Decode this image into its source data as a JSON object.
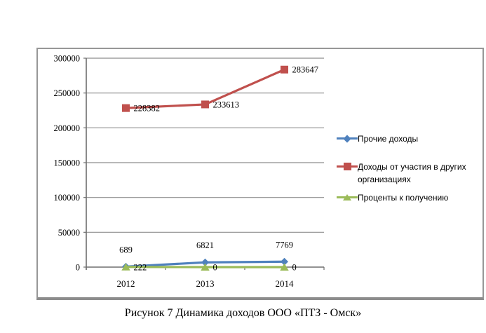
{
  "chart_data": {
    "type": "line",
    "title": "Рисунок 7 Динамика доходов ООО «ПТЗ - Омск»",
    "xlabel": "",
    "ylabel": "",
    "categories": [
      "2012",
      "2013",
      "2014"
    ],
    "series": [
      {
        "name": "Прочие доходы",
        "values": [
          689,
          6821,
          7769
        ],
        "labels": [
          "689",
          "6821",
          "7769"
        ],
        "color": "#4F81BD",
        "marker": "diamond",
        "label_position": "above"
      },
      {
        "name": "Доходы от участия в других организациях",
        "values": [
          228382,
          233613,
          283647
        ],
        "labels": [
          "228382",
          "233613",
          "283647"
        ],
        "color": "#C0504D",
        "marker": "square",
        "label_position": "right"
      },
      {
        "name": "Проценты к получению",
        "values": [
          222,
          0,
          0
        ],
        "labels": [
          "222",
          "0",
          "0"
        ],
        "color": "#9BBB59",
        "marker": "triangle",
        "label_position": "right"
      }
    ],
    "ylim": [
      0,
      300000
    ],
    "ytick_step": 50000,
    "yticks": [
      "0",
      "50000",
      "100000",
      "150000",
      "200000",
      "250000",
      "300000"
    ],
    "grid": true,
    "data_labels": true,
    "legend_position": "right",
    "gridline_color": "#8e8e8e",
    "axis_color": "#6e6e6e",
    "label_text_color": "#000000"
  }
}
